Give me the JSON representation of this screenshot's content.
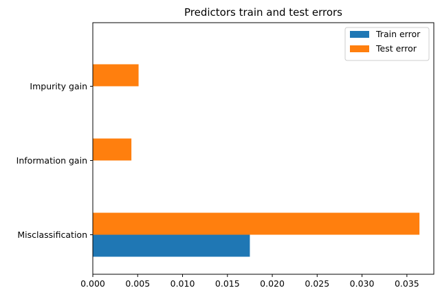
{
  "chart_data": {
    "type": "bar",
    "orientation": "horizontal",
    "title": "Predictors train and test errors",
    "xlabel": "",
    "ylabel": "",
    "categories": [
      "Misclassification",
      "Information gain",
      "Impurity gain"
    ],
    "series": [
      {
        "name": "Train error",
        "color": "#1f77b4",
        "values": [
          0.0175,
          0.0,
          0.0
        ]
      },
      {
        "name": "Test error",
        "color": "#ff7f0e",
        "values": [
          0.0364,
          0.0043,
          0.0051
        ]
      }
    ],
    "xlim": [
      0.0,
      0.038
    ],
    "xticks": [
      "0.000",
      "0.005",
      "0.010",
      "0.015",
      "0.020",
      "0.025",
      "0.030",
      "0.035"
    ],
    "grid": false,
    "legend_position": "top-right"
  }
}
